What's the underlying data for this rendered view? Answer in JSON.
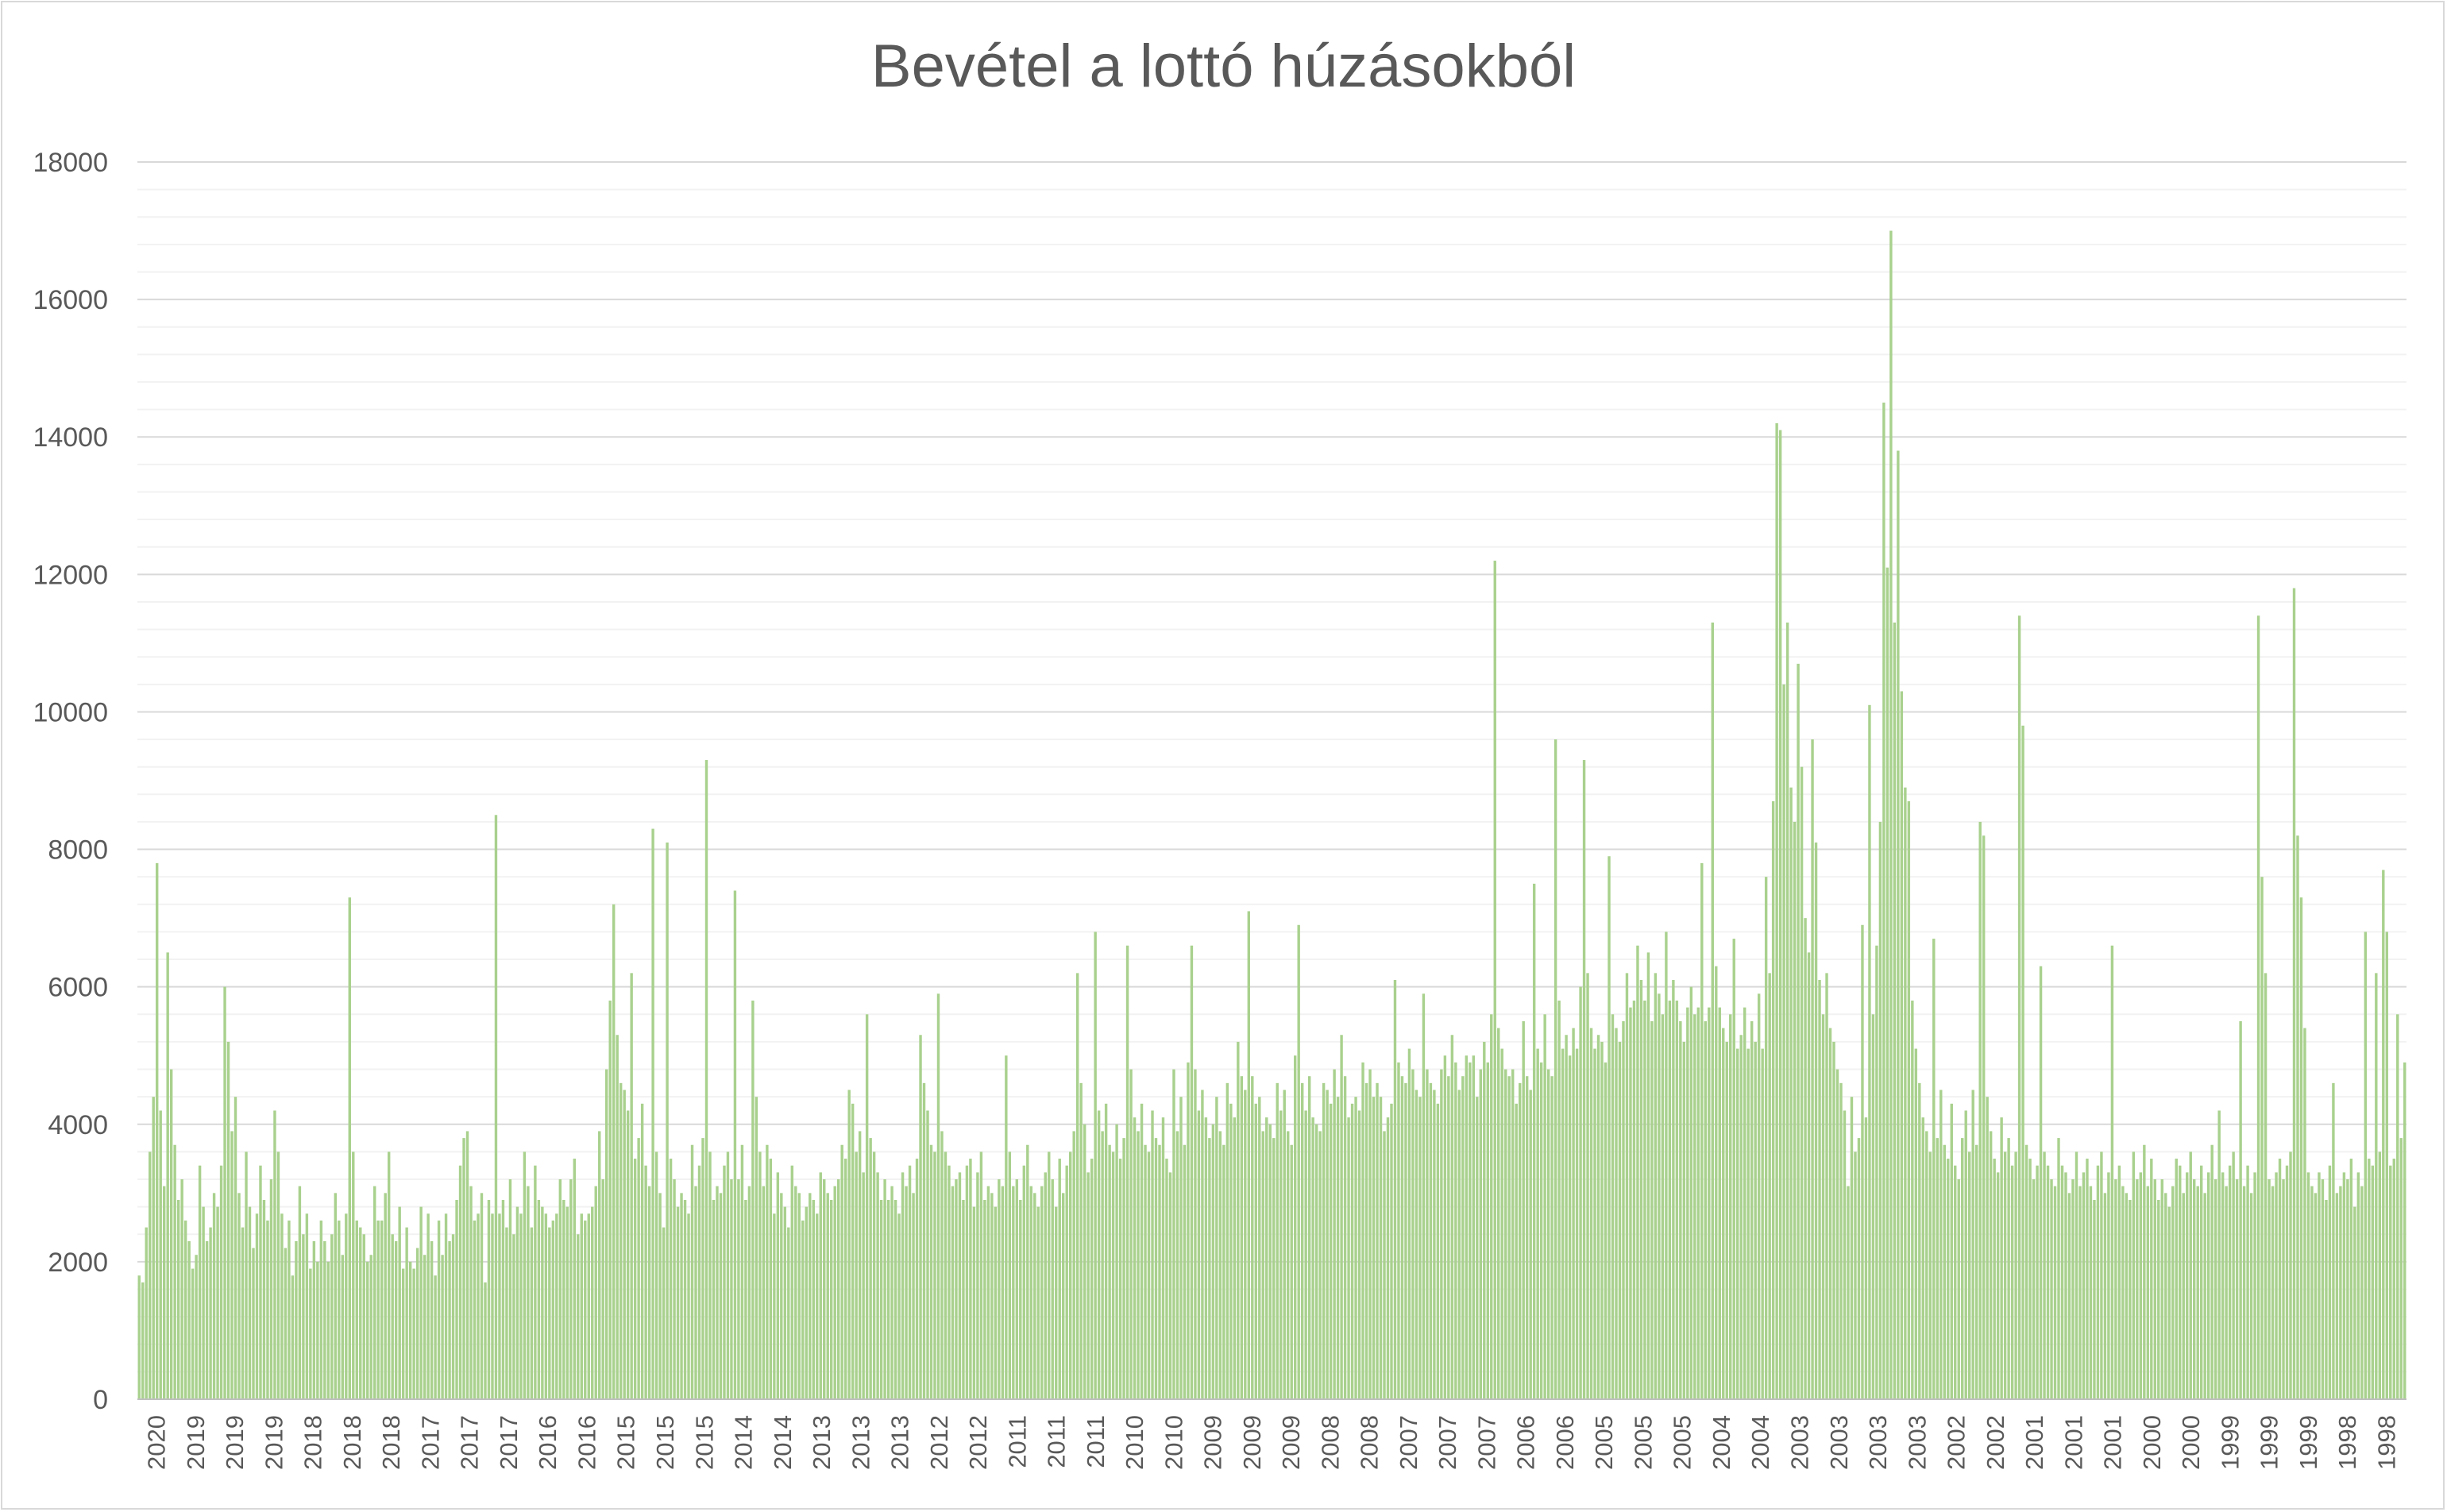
{
  "chart_data": {
    "type": "bar",
    "title": "Bevétel a lottó húzásokból",
    "xlabel": "",
    "ylabel": "",
    "ylim": [
      0,
      18000
    ],
    "yticks": [
      0,
      2000,
      4000,
      6000,
      8000,
      10000,
      12000,
      14000,
      16000,
      18000
    ],
    "grid": "major and minor horizontal",
    "legend": "none",
    "bar_color": "#a9d18e",
    "x_tick_labels": [
      "2020",
      "2019",
      "2019",
      "2019",
      "2018",
      "2018",
      "2018",
      "2017",
      "2017",
      "2017",
      "2016",
      "2016",
      "2015",
      "2015",
      "2015",
      "2014",
      "2014",
      "2013",
      "2013",
      "2013",
      "2012",
      "2012",
      "2011",
      "2011",
      "2011",
      "2010",
      "2010",
      "2009",
      "2009",
      "2009",
      "2008",
      "2008",
      "2007",
      "2007",
      "2007",
      "2006",
      "2006",
      "2005",
      "2005",
      "2005",
      "2004",
      "2004",
      "2003",
      "2003",
      "2003",
      "2003",
      "2002",
      "2002",
      "2001",
      "2001",
      "2001",
      "2000",
      "2000",
      "1999",
      "1999",
      "1999",
      "1998",
      "1998"
    ],
    "series": [
      {
        "values": [
          1800,
          1700,
          2500,
          3600,
          4400,
          7800,
          4200,
          3100,
          6500,
          4800,
          3700,
          2900,
          3200,
          2600,
          2300,
          1900,
          2100,
          3400,
          2800,
          2300,
          2500,
          3000,
          2800,
          3400,
          6000,
          5200,
          3900,
          4400,
          3000,
          2500,
          3600,
          2800,
          2200,
          2700,
          3400,
          2900,
          2600,
          3200,
          4200,
          3600,
          2700,
          2200,
          2600,
          1800,
          2300,
          3100,
          2400,
          2700,
          1900,
          2300,
          2000,
          2600,
          2300,
          2000,
          2400,
          3000,
          2600,
          2100,
          2700,
          7300,
          3600,
          2600,
          2500,
          2400,
          2000,
          2100,
          3100,
          2600,
          2600,
          3000,
          3600,
          2400,
          2300,
          2800,
          1900,
          2500,
          2000,
          1900,
          2200,
          2800,
          2100,
          2700,
          2300,
          1800,
          2600,
          2100,
          2700,
          2300,
          2400,
          2900,
          3400,
          3800,
          3900,
          3100,
          2600,
          2700,
          3000,
          1700,
          2900,
          2700,
          8500,
          2700,
          2900,
          2500,
          3200,
          2400,
          2800,
          2700,
          3600,
          3100,
          2500,
          3400,
          2900,
          2800,
          2700,
          2500,
          2600,
          2700,
          3200,
          2900,
          2800,
          3200,
          3500,
          2400,
          2700,
          2600,
          2700,
          2800,
          3100,
          3900,
          3200,
          4800,
          5800,
          7200,
          5300,
          4600,
          4500,
          4200,
          6200,
          3500,
          3800,
          4300,
          3400,
          3100,
          8300,
          3600,
          3000,
          2500,
          8100,
          3500,
          3200,
          2800,
          3000,
          2900,
          2700,
          3700,
          3100,
          3400,
          3800,
          9300,
          3600,
          2900,
          3100,
          3000,
          3400,
          3600,
          3200,
          7400,
          3200,
          3700,
          2900,
          3100,
          5800,
          4400,
          3600,
          3100,
          3700,
          3500,
          2700,
          3300,
          3000,
          2800,
          2500,
          3400,
          3100,
          3000,
          2600,
          2800,
          3000,
          2900,
          2700,
          3300,
          3200,
          3000,
          2900,
          3100,
          3200,
          3700,
          3500,
          4500,
          4300,
          3600,
          3900,
          3300,
          5600,
          3800,
          3600,
          3300,
          2900,
          3200,
          2900,
          3100,
          2900,
          2700,
          3300,
          3100,
          3400,
          3000,
          3500,
          5300,
          4600,
          4200,
          3700,
          3600,
          5900,
          3900,
          3600,
          3400,
          3100,
          3200,
          3300,
          2900,
          3400,
          3500,
          2800,
          3300,
          3600,
          2900,
          3100,
          3000,
          2800,
          3200,
          3100,
          5000,
          3600,
          3100,
          3200,
          2900,
          3400,
          3700,
          3100,
          3000,
          2800,
          3100,
          3300,
          3600,
          3200,
          2800,
          3500,
          3000,
          3400,
          3600,
          3900,
          6200,
          4600,
          4000,
          3300,
          3500,
          6800,
          4200,
          3900,
          4300,
          3700,
          3600,
          4000,
          3500,
          3800,
          6600,
          4800,
          4100,
          3900,
          4300,
          3700,
          3600,
          4200,
          3800,
          3700,
          4100,
          3500,
          3300,
          4800,
          3900,
          4400,
          3700,
          4900,
          6600,
          4800,
          4200,
          4500,
          4100,
          3800,
          4000,
          4400,
          3900,
          3700,
          4600,
          4300,
          4100,
          5200,
          4700,
          4500,
          7100,
          4700,
          4300,
          4400,
          3900,
          4100,
          4000,
          3800,
          4600,
          4200,
          4500,
          3900,
          3700,
          5000,
          6900,
          4600,
          4200,
          4700,
          4100,
          4000,
          3900,
          4600,
          4500,
          4300,
          4800,
          4400,
          5300,
          4700,
          4100,
          4300,
          4400,
          4200,
          4900,
          4600,
          4800,
          4400,
          4600,
          4400,
          3900,
          4100,
          4300,
          6100,
          4900,
          4700,
          4600,
          5100,
          4800,
          4500,
          4400,
          5900,
          4800,
          4600,
          4500,
          4300,
          4800,
          5000,
          4700,
          5300,
          4900,
          4500,
          4700,
          5000,
          4900,
          5000,
          4400,
          4800,
          5200,
          4900,
          5600,
          12200,
          5400,
          5100,
          4800,
          4700,
          4800,
          4300,
          4600,
          5500,
          4700,
          4500,
          7500,
          5100,
          4900,
          5600,
          4800,
          4700,
          9600,
          5800,
          5100,
          5300,
          5000,
          5400,
          5100,
          6000,
          9300,
          6200,
          5400,
          5100,
          5300,
          5200,
          4900,
          7900,
          5600,
          5400,
          5200,
          5500,
          6200,
          5700,
          5800,
          6600,
          6100,
          5800,
          6500,
          5500,
          6200,
          5900,
          5600,
          6800,
          5800,
          6100,
          5800,
          5500,
          5200,
          5700,
          6000,
          5600,
          5700,
          7800,
          5500,
          5700,
          11300,
          6300,
          5700,
          5400,
          5200,
          5600,
          6700,
          5100,
          5300,
          5700,
          5100,
          5500,
          5200,
          5900,
          5100,
          7600,
          6200,
          8700,
          14200,
          14100,
          10400,
          11300,
          8900,
          8400,
          10700,
          9200,
          7000,
          6500,
          9600,
          8100,
          6100,
          5600,
          6200,
          5400,
          5200,
          4800,
          4600,
          4200,
          3100,
          4400,
          3600,
          3800,
          6900,
          4100,
          10100,
          5600,
          6600,
          8400,
          14500,
          12100,
          17000,
          11300,
          13800,
          10300,
          8900,
          8700,
          5800,
          5100,
          4600,
          4100,
          3900,
          3600,
          6700,
          3800,
          4500,
          3700,
          3500,
          4300,
          3400,
          3200,
          3800,
          4200,
          3600,
          4500,
          3700,
          8400,
          8200,
          4400,
          3900,
          3500,
          3300,
          4100,
          3600,
          3800,
          3400,
          3600,
          11400,
          9800,
          3700,
          3500,
          3200,
          3400,
          6300,
          3600,
          3400,
          3200,
          3100,
          3800,
          3400,
          3300,
          3000,
          3200,
          3600,
          3100,
          3300,
          3500,
          3100,
          2900,
          3400,
          3600,
          3000,
          3300,
          6600,
          3200,
          3400,
          3100,
          3000,
          2900,
          3600,
          3200,
          3300,
          3700,
          3100,
          3500,
          3200,
          2900,
          3200,
          3000,
          2800,
          3100,
          3500,
          3400,
          3000,
          3300,
          3600,
          3200,
          3100,
          3400,
          3000,
          3300,
          3700,
          3200,
          4200,
          3300,
          3100,
          3400,
          3600,
          3200,
          5500,
          3100,
          3400,
          3000,
          3300,
          11400,
          7600,
          6200,
          3200,
          3100,
          3300,
          3500,
          3200,
          3400,
          3600,
          11800,
          8200,
          7300,
          5400,
          3300,
          3100,
          3000,
          3300,
          3200,
          2900,
          3400,
          4600,
          3000,
          3100,
          3300,
          3200,
          3500,
          2800,
          3300,
          3100,
          6800,
          3500,
          3400,
          6200,
          3600,
          7700,
          6800,
          3400,
          3500,
          5600,
          3800,
          4900
        ]
      }
    ]
  }
}
